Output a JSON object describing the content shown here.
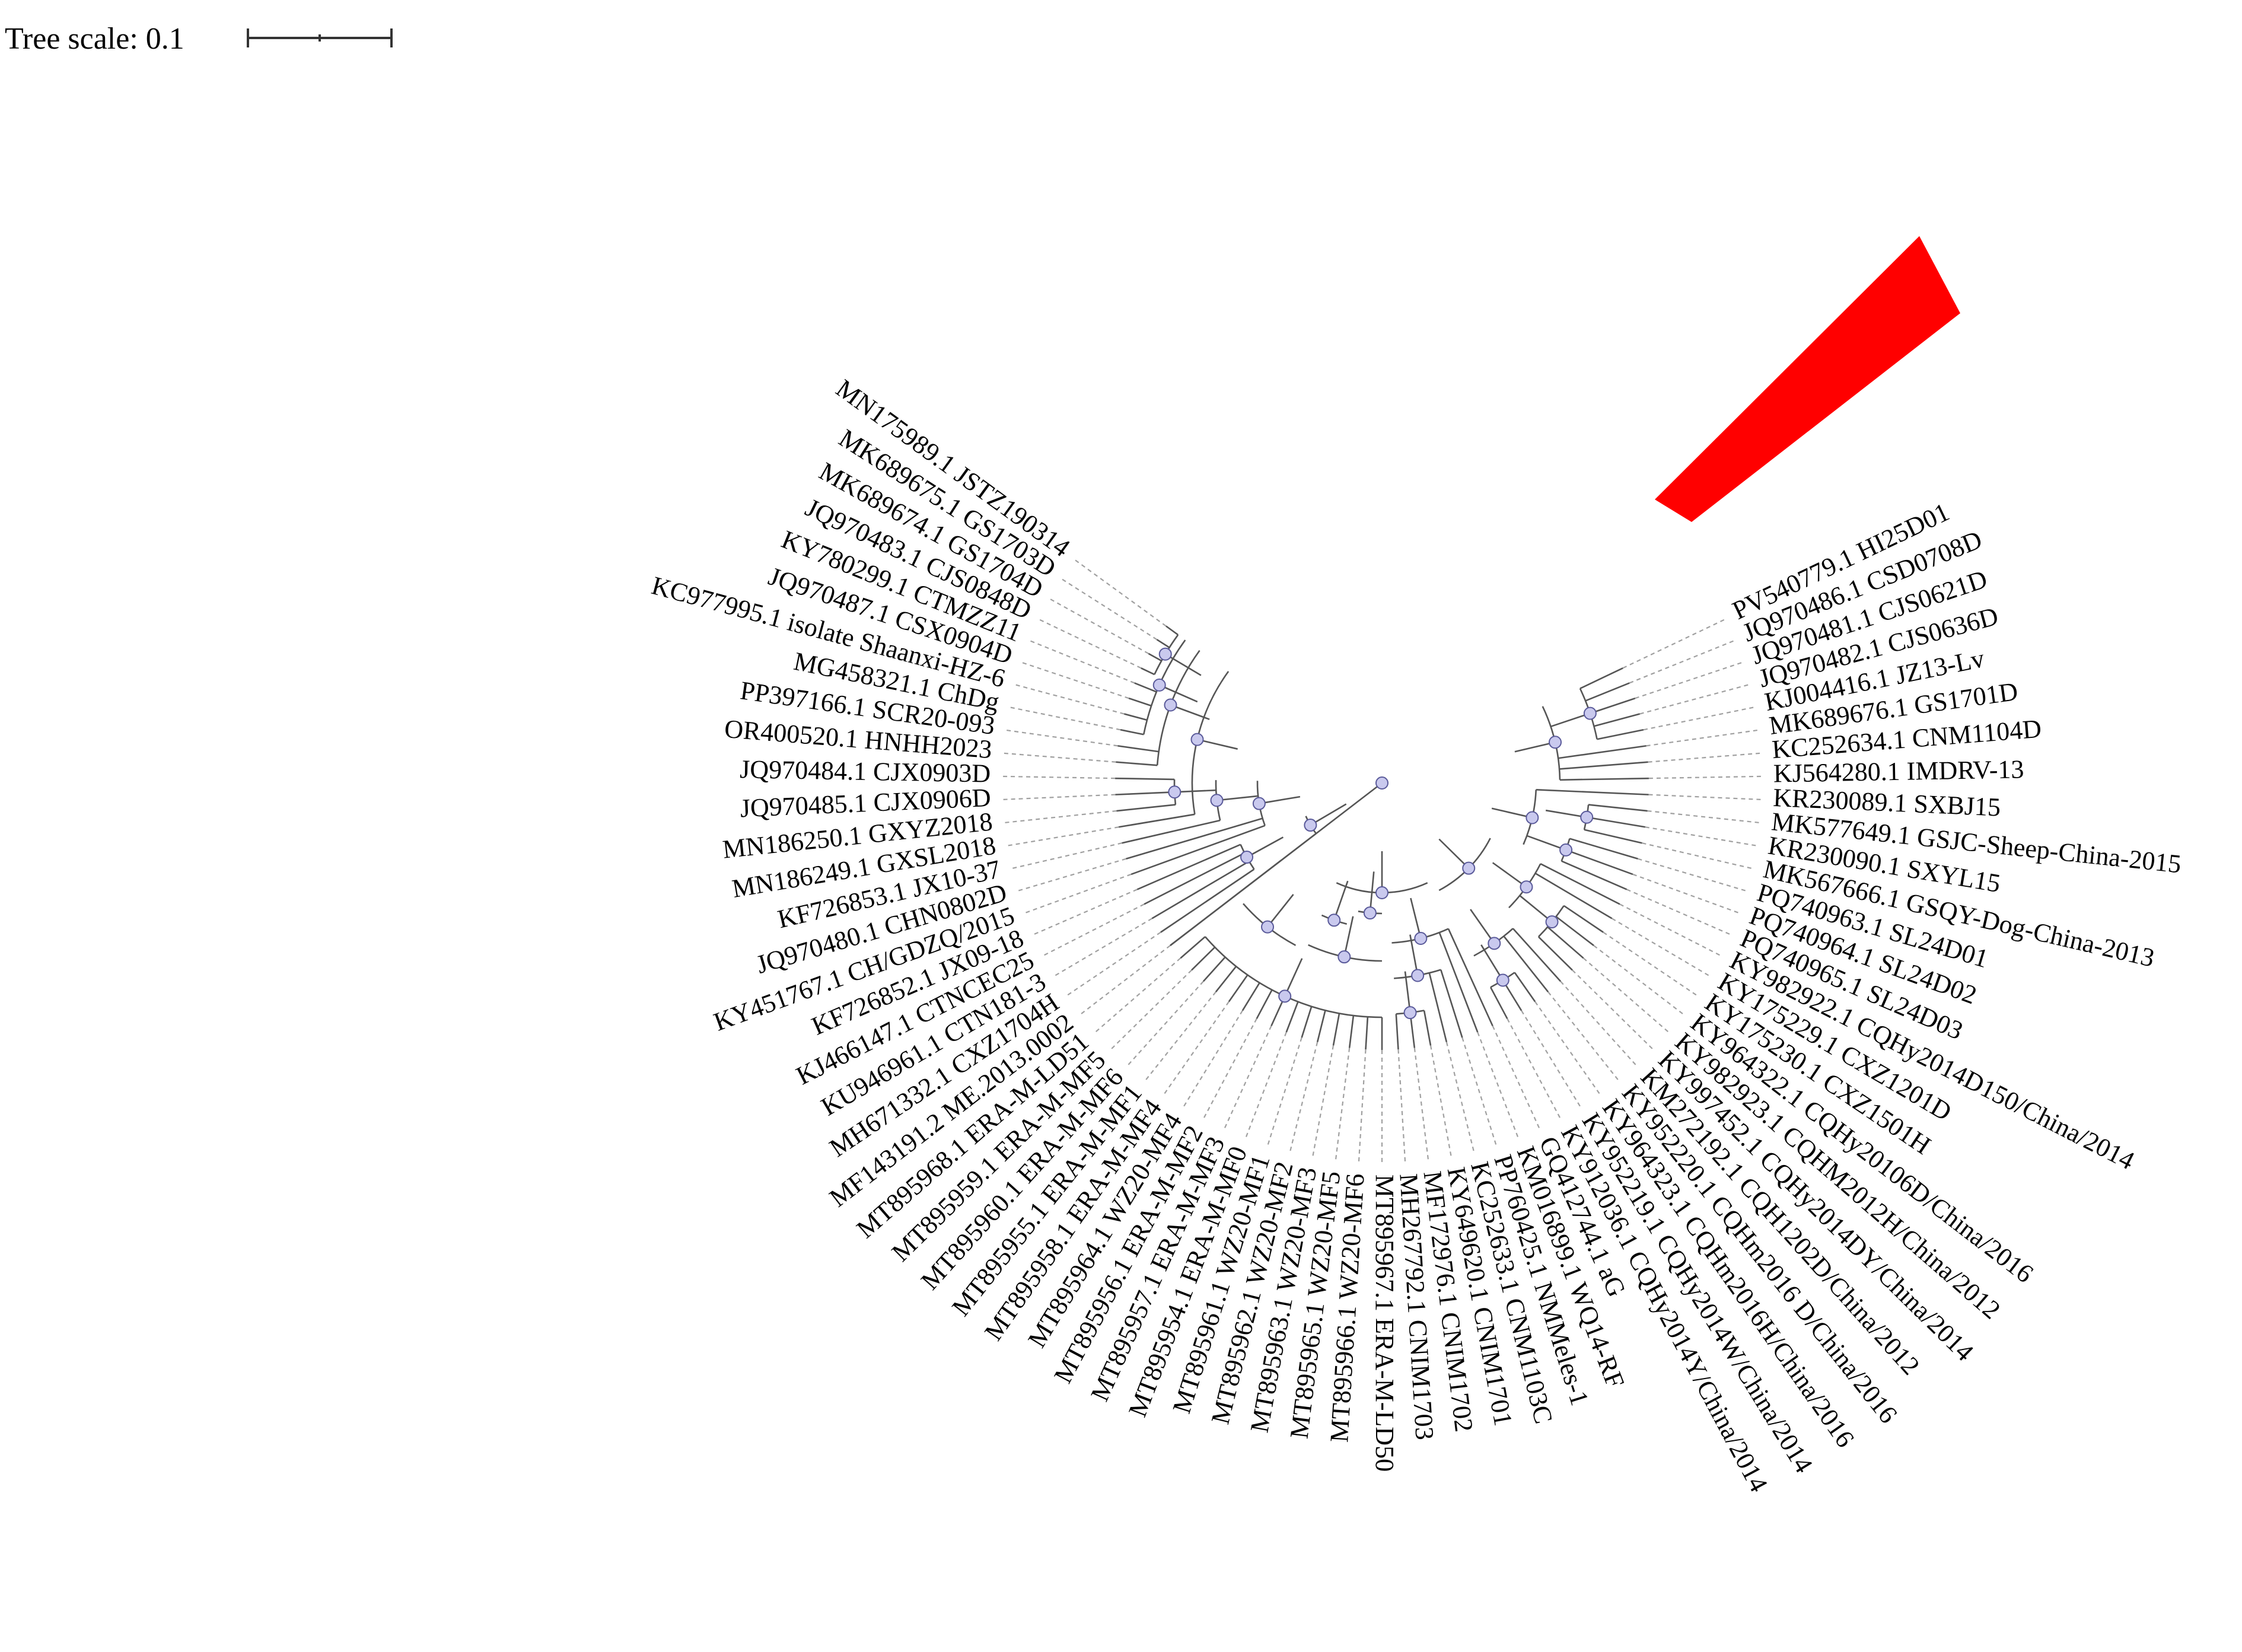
{
  "tree_scale": {
    "label": "Tree scale: 0.1"
  },
  "colors": {
    "highlight": "#ff0000",
    "node_fill": "#c9c9ee",
    "leader": "#a0a0a0"
  },
  "leaves": [
    {
      "label": "PV540779.1 HI25D01",
      "angle": -25.5
    },
    {
      "label": "JQ970486.1 CSD0708D",
      "angle": -22
    },
    {
      "label": "JQ970481.1 CJS0621D",
      "angle": -18.5
    },
    {
      "label": "JQ970482.1 CJS0636D",
      "angle": -15
    },
    {
      "label": "KJ004416.1 JZ13-Lv",
      "angle": -11.5
    },
    {
      "label": "MK689676.1 GS1701D",
      "angle": -8
    },
    {
      "label": "KC252634.1 CNM1104D",
      "angle": -4.5
    },
    {
      "label": "KJ564280.1 IMDRV-13",
      "angle": -1
    },
    {
      "label": "KR230089.1 SXBJ15",
      "angle": 2.5
    },
    {
      "label": "MK577649.1 GSJC-Sheep-China-2015",
      "angle": 6
    },
    {
      "label": "KR230090.1 SXYL15",
      "angle": 9.5
    },
    {
      "label": "MK567666.1 GSQY-Dog-China-2013",
      "angle": 13
    },
    {
      "label": "PQ740963.1 SL24D01",
      "angle": 16.5
    },
    {
      "label": "PQ740964.1 SL24D02",
      "angle": 20
    },
    {
      "label": "PQ740965.1 SL24D03",
      "angle": 23.5
    },
    {
      "label": "KY982922.1 CQHy2014D150/China/2014",
      "angle": 27
    },
    {
      "label": "KY175229.1 CXZ1201D",
      "angle": 30.5
    },
    {
      "label": "KY175230.1 CXZ1501H",
      "angle": 34
    },
    {
      "label": "KY964322.1 CQHy20106D/China/2016",
      "angle": 37.5
    },
    {
      "label": "KY982923.1 CQHM2012H/China/2012",
      "angle": 41
    },
    {
      "label": "KY997452.1 CQHy2014DY/China/2014",
      "angle": 44.5
    },
    {
      "label": "KM272192.1 CQH1202D/China/2012",
      "angle": 48
    },
    {
      "label": "KY952220.1 CQHm2016 D/China/2016",
      "angle": 51.5
    },
    {
      "label": "KY964323.1 CQHm2016H/China/2016",
      "angle": 55
    },
    {
      "label": "KY952219.1 CQHy2014W/China/2014",
      "angle": 58.5
    },
    {
      "label": "KY912036.1 CQHy2014Y/China/2014",
      "angle": 62
    },
    {
      "label": "GQ412744.1 aG",
      "angle": 65.5
    },
    {
      "label": "KM016899.1 WQ14-RF",
      "angle": 69
    },
    {
      "label": "PP760425.1 NMMeles-1",
      "angle": 72.5
    },
    {
      "label": "KC252633.1 CNM1103C",
      "angle": 76
    },
    {
      "label": "KY649620.1 CNIM1701",
      "angle": 79.5
    },
    {
      "label": "MF172976.1 CNIM1702",
      "angle": 83
    },
    {
      "label": "MH267792.1 CNIM1703",
      "angle": 86.5
    },
    {
      "label": "MT895967.1 ERA-M-LD50",
      "angle": 90
    },
    {
      "label": "MT895966.1 WZ20-MF6",
      "angle": 93.5
    },
    {
      "label": "MT895965.1 WZ20-MF5",
      "angle": 97
    },
    {
      "label": "MT895963.1 WZ20-MF3",
      "angle": 100.5
    },
    {
      "label": "MT895962.1 WZ20-MF2",
      "angle": 104
    },
    {
      "label": "MT895961.1 WZ20-MF1",
      "angle": 107.5
    },
    {
      "label": "MT895954.1 ERA-M-MF0",
      "angle": 111
    },
    {
      "label": "MT895957.1 ERA-M-MF3",
      "angle": 114.5
    },
    {
      "label": "MT895956.1 ERA-M-MF2",
      "angle": 118
    },
    {
      "label": "MT895964.1 WZ20-MF4",
      "angle": 121.5
    },
    {
      "label": "MT895958.1 ERA-M-MF4",
      "angle": 125
    },
    {
      "label": "MT895955.1 ERA-M-MF1",
      "angle": 128.5
    },
    {
      "label": "MT895960.1 ERA-M-MF6",
      "angle": 132
    },
    {
      "label": "MT895959.1 ERA-M-MF5",
      "angle": 135.5
    },
    {
      "label": "MT895968.1 ERA-M-LD51",
      "angle": 139
    },
    {
      "label": "MF143191.2 ME.2013.0002",
      "angle": 142.5
    },
    {
      "label": "MH671332.1 CXZ1704H",
      "angle": 146
    },
    {
      "label": "KU946961.1 CTN181-3",
      "angle": 149.5
    },
    {
      "label": "KJ466147.1 CTNCEC25",
      "angle": 153
    },
    {
      "label": "KF726852.1 JX09-18",
      "angle": 156.5
    },
    {
      "label": "KY451767.1 CH/GDZQ/2015",
      "angle": 160
    },
    {
      "label": "JQ970480.1 CHN0802D",
      "angle": 163.5
    },
    {
      "label": "KF726853.1 JX10-37",
      "angle": 167
    },
    {
      "label": "MN186249.1 GXSL2018",
      "angle": 170.5
    },
    {
      "label": "MN186250.1 GXYZ2018",
      "angle": 174
    },
    {
      "label": "JQ970485.1 CJX0906D",
      "angle": 177.5
    },
    {
      "label": "JQ970484.1 CJX0903D",
      "angle": 181
    },
    {
      "label": "OR400520.1 HNHH2023",
      "angle": 184.5
    },
    {
      "label": "PP397166.1 SCR20-093",
      "angle": 188
    },
    {
      "label": "MG458321.1 ChDg",
      "angle": 191.5
    },
    {
      "label": "KC977995.1 isolate Shaanxi-HZ-6",
      "angle": 195
    },
    {
      "label": "JQ970487.1 CSX0904D",
      "angle": 198.5
    },
    {
      "label": "KY780299.1 CTMZZ11",
      "angle": 202
    },
    {
      "label": "JQ970483.1 CJS0848D",
      "angle": 205.5
    },
    {
      "label": "MK689674.1 GS1704D",
      "angle": 209
    },
    {
      "label": "MK689675.1 GS1703D",
      "angle": 212.5
    },
    {
      "label": "MN175989.1 JSTZ190314",
      "angle": 216,
      "highlight": true
    }
  ]
}
